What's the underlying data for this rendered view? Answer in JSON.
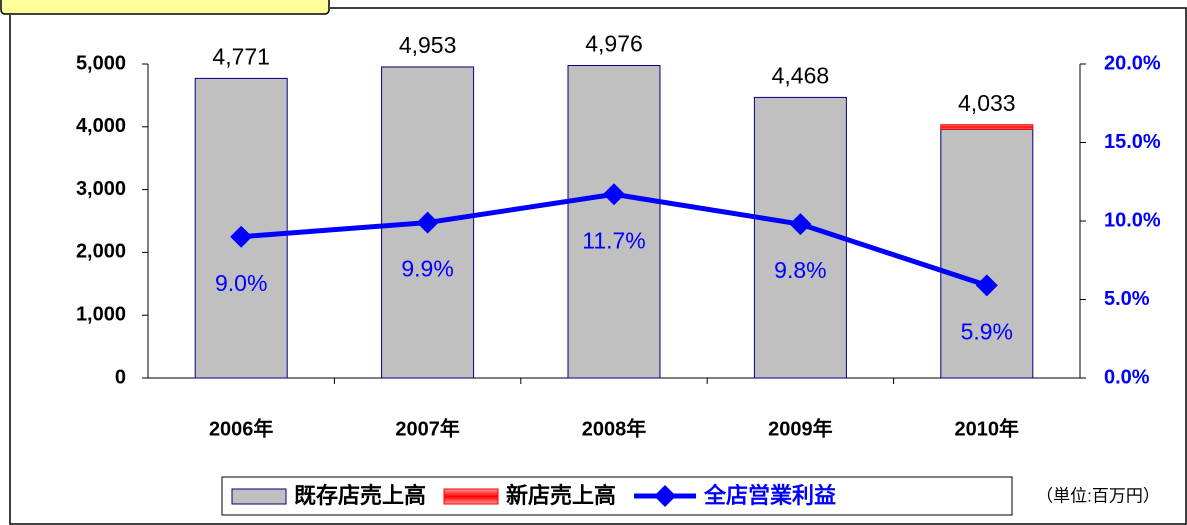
{
  "chart_data": {
    "type": "bar",
    "categories": [
      "2006年",
      "2007年",
      "2008年",
      "2009年",
      "2010年"
    ],
    "series": [
      {
        "name": "既存店売上高",
        "type": "bar",
        "color": "#c0c0c0",
        "values": [
          4771,
          4953,
          4976,
          4468,
          3960
        ]
      },
      {
        "name": "新店売上高",
        "type": "bar",
        "color": "#ff0000",
        "values": [
          null,
          null,
          null,
          null,
          73
        ]
      },
      {
        "name": "全店営業利益",
        "type": "line",
        "axis": "y2",
        "color": "#0000ff",
        "values": [
          9.0,
          9.9,
          11.7,
          9.8,
          5.9
        ],
        "value_labels": [
          "9.0%",
          "9.9%",
          "11.7%",
          "9.8%",
          "5.9%"
        ]
      }
    ],
    "totals": [
      4771,
      4953,
      4976,
      4468,
      4033
    ],
    "total_labels": [
      "4,771",
      "4,953",
      "4,976",
      "4,468",
      "4,033"
    ],
    "ylim": [
      0,
      5000
    ],
    "yticks": [
      0,
      {
        "value": 1000,
        "label": "1,000"
      },
      {
        "value": 2000,
        "label": "2,000"
      },
      {
        "value": 3000,
        "label": "3,000"
      },
      {
        "value": 4000,
        "label": "4,000"
      },
      {
        "value": 5000,
        "label": "5,000"
      }
    ],
    "y2lim": [
      0,
      20
    ],
    "y2ticks": [
      {
        "value": 0,
        "label": "0.0%"
      },
      {
        "value": 5,
        "label": "5.0%"
      },
      {
        "value": 10,
        "label": "10.0%"
      },
      {
        "value": 15,
        "label": "15.0%"
      },
      {
        "value": 20,
        "label": "20.0%"
      }
    ],
    "legend": "bottom",
    "unit_note": "（単位:百万円）"
  }
}
